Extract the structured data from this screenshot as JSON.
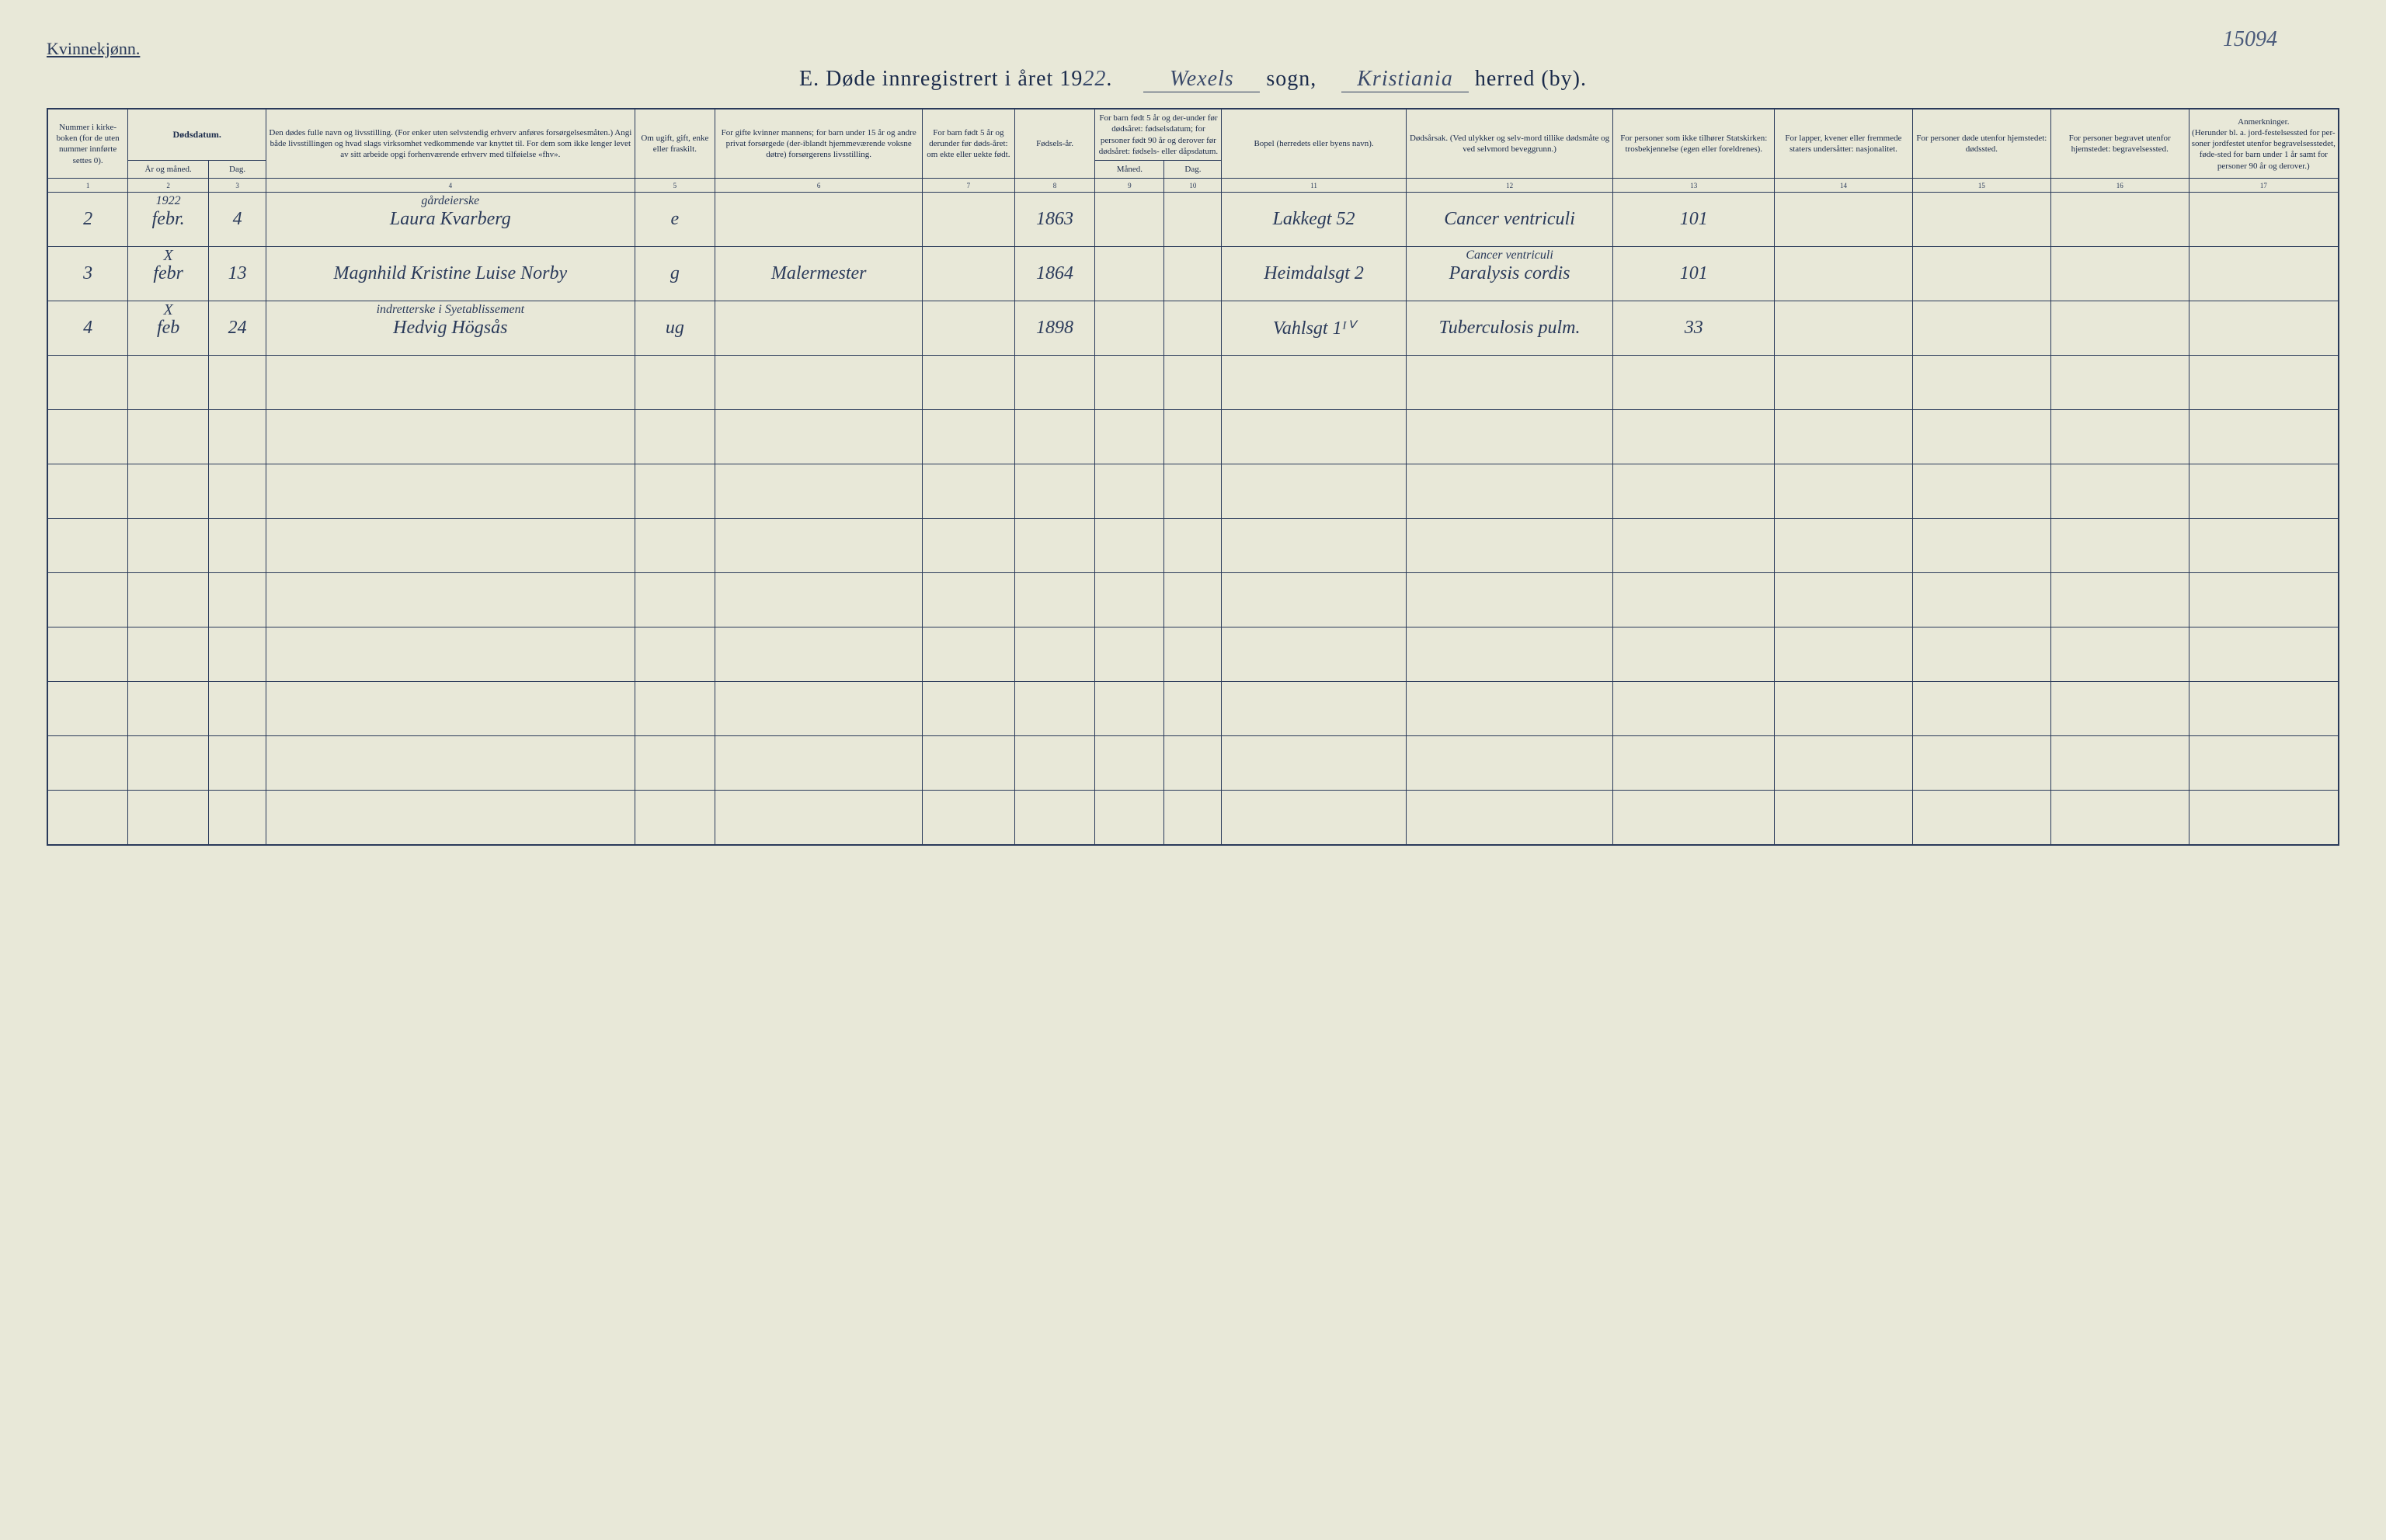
{
  "page_number_handwritten": "15094",
  "gender_label": "Kvinnekjønn.",
  "title": {
    "prefix": "E.  Døde innregistrert i året 19",
    "year_hand": "22",
    "period": ".",
    "sogn_value": "Wexels",
    "sogn_label": "sogn,",
    "herred_value": "Kristiania",
    "herred_label": "herred (by)."
  },
  "headers": {
    "c1": "Nummer i kirke-boken (for de uten nummer innførte settes 0).",
    "c2_top": "Dødsdatum.",
    "c2a": "År og måned.",
    "c2b": "Dag.",
    "c4": "Den dødes fulle navn og livsstilling.\n(For enker uten selvstendig erhverv anføres forsørgelsesmåten.)\nAngi både livsstillingen og hvad slags virksomhet vedkommende var knyttet til.\nFor dem som ikke lenger levet av sitt arbeide opgi forhenværende erhverv med tilføielse «fhv».",
    "c5": "Om ugift, gift, enke eller fraskilt.",
    "c6": "For gifte kvinner mannens; for barn under 15 år og andre privat forsørgede (der-iblandt hjemmeværende voksne døtre) forsørgerens livsstilling.",
    "c7": "For barn født 5 år og derunder før døds-året: om ekte eller uekte født.",
    "c8": "Fødsels-år.",
    "c9_top": "For barn født 5 år og der-under før dødsåret: fødselsdatum; for personer født 90 år og derover før dødsåret: fødsels- eller dåpsdatum.",
    "c9a": "Måned.",
    "c9b": "Dag.",
    "c11": "Bopel\n(herredets eller byens navn).",
    "c12": "Dødsårsak.\n(Ved ulykker og selv-mord tillike dødsmåte og ved selvmord beveggrunn.)",
    "c13": "For personer som ikke tilhører Statskirken:\ntrosbekjennelse (egen eller foreldrenes).",
    "c14": "For lapper, kvener eller fremmede staters undersåtter:\nnasjonalitet.",
    "c15": "For personer døde utenfor hjemstedet:\ndødssted.",
    "c16": "For personer begravet utenfor hjemstedet:\nbegravelsessted.",
    "c17_top": "Anmerkninger.",
    "c17_sub": "(Herunder bl. a. jord-festelsessted for per-soner jordfestet utenfor begravelsesstedet, føde-sted for barn under 1 år samt for personer 90 år og derover.)"
  },
  "colnums": [
    "1",
    "2",
    "3",
    "4",
    "5",
    "6",
    "7",
    "8",
    "9",
    "10",
    "11",
    "12",
    "13",
    "14",
    "15",
    "16",
    "17"
  ],
  "rows": [
    {
      "num": "2",
      "year_above": "1922",
      "month": "febr.",
      "day": "4",
      "occupation_above": "gårdeierske",
      "name": "Laura Kvarberg",
      "marital": "e",
      "provider": "",
      "birth_year": "1863",
      "residence": "Lakkegt 52",
      "cause": "Cancer ventriculi",
      "col13": "101"
    },
    {
      "num": "3",
      "x_above": "X",
      "month": "febr",
      "day": "13",
      "name": "Magnhild Kristine Luise Norby",
      "marital": "g",
      "provider": "Malermester",
      "birth_year": "1864",
      "residence": "Heimdalsgt 2",
      "cause_above": "Cancer ventriculi",
      "cause": "Paralysis cordis",
      "col13": "101"
    },
    {
      "num": "4",
      "x_above": "X",
      "month": "feb",
      "day": "24",
      "occupation_above": "indretterske i Syetablissement",
      "name": "Hedvig Högsås",
      "marital": "ug",
      "provider": "",
      "birth_year": "1898",
      "residence": "Vahlsgt 1ᴵⱽ",
      "cause": "Tuberculosis pulm.",
      "col13": "33"
    }
  ],
  "empty_rows": 9,
  "colors": {
    "paper": "#e8e8d8",
    "ink_print": "#1a2a4a",
    "ink_hand": "#2a3a5a",
    "rule": "#2a3a5a"
  },
  "column_widths_pct": [
    3.5,
    3.5,
    2.5,
    16,
    3.5,
    9,
    4,
    3.5,
    3,
    2.5,
    8,
    9,
    7,
    6,
    6,
    6,
    6.5
  ],
  "fonts": {
    "printed": "Times New Roman, serif",
    "handwritten": "Brush Script MT, cursive",
    "header_size_pt": 11,
    "title_size_pt": 28,
    "body_hand_size_pt": 24
  }
}
